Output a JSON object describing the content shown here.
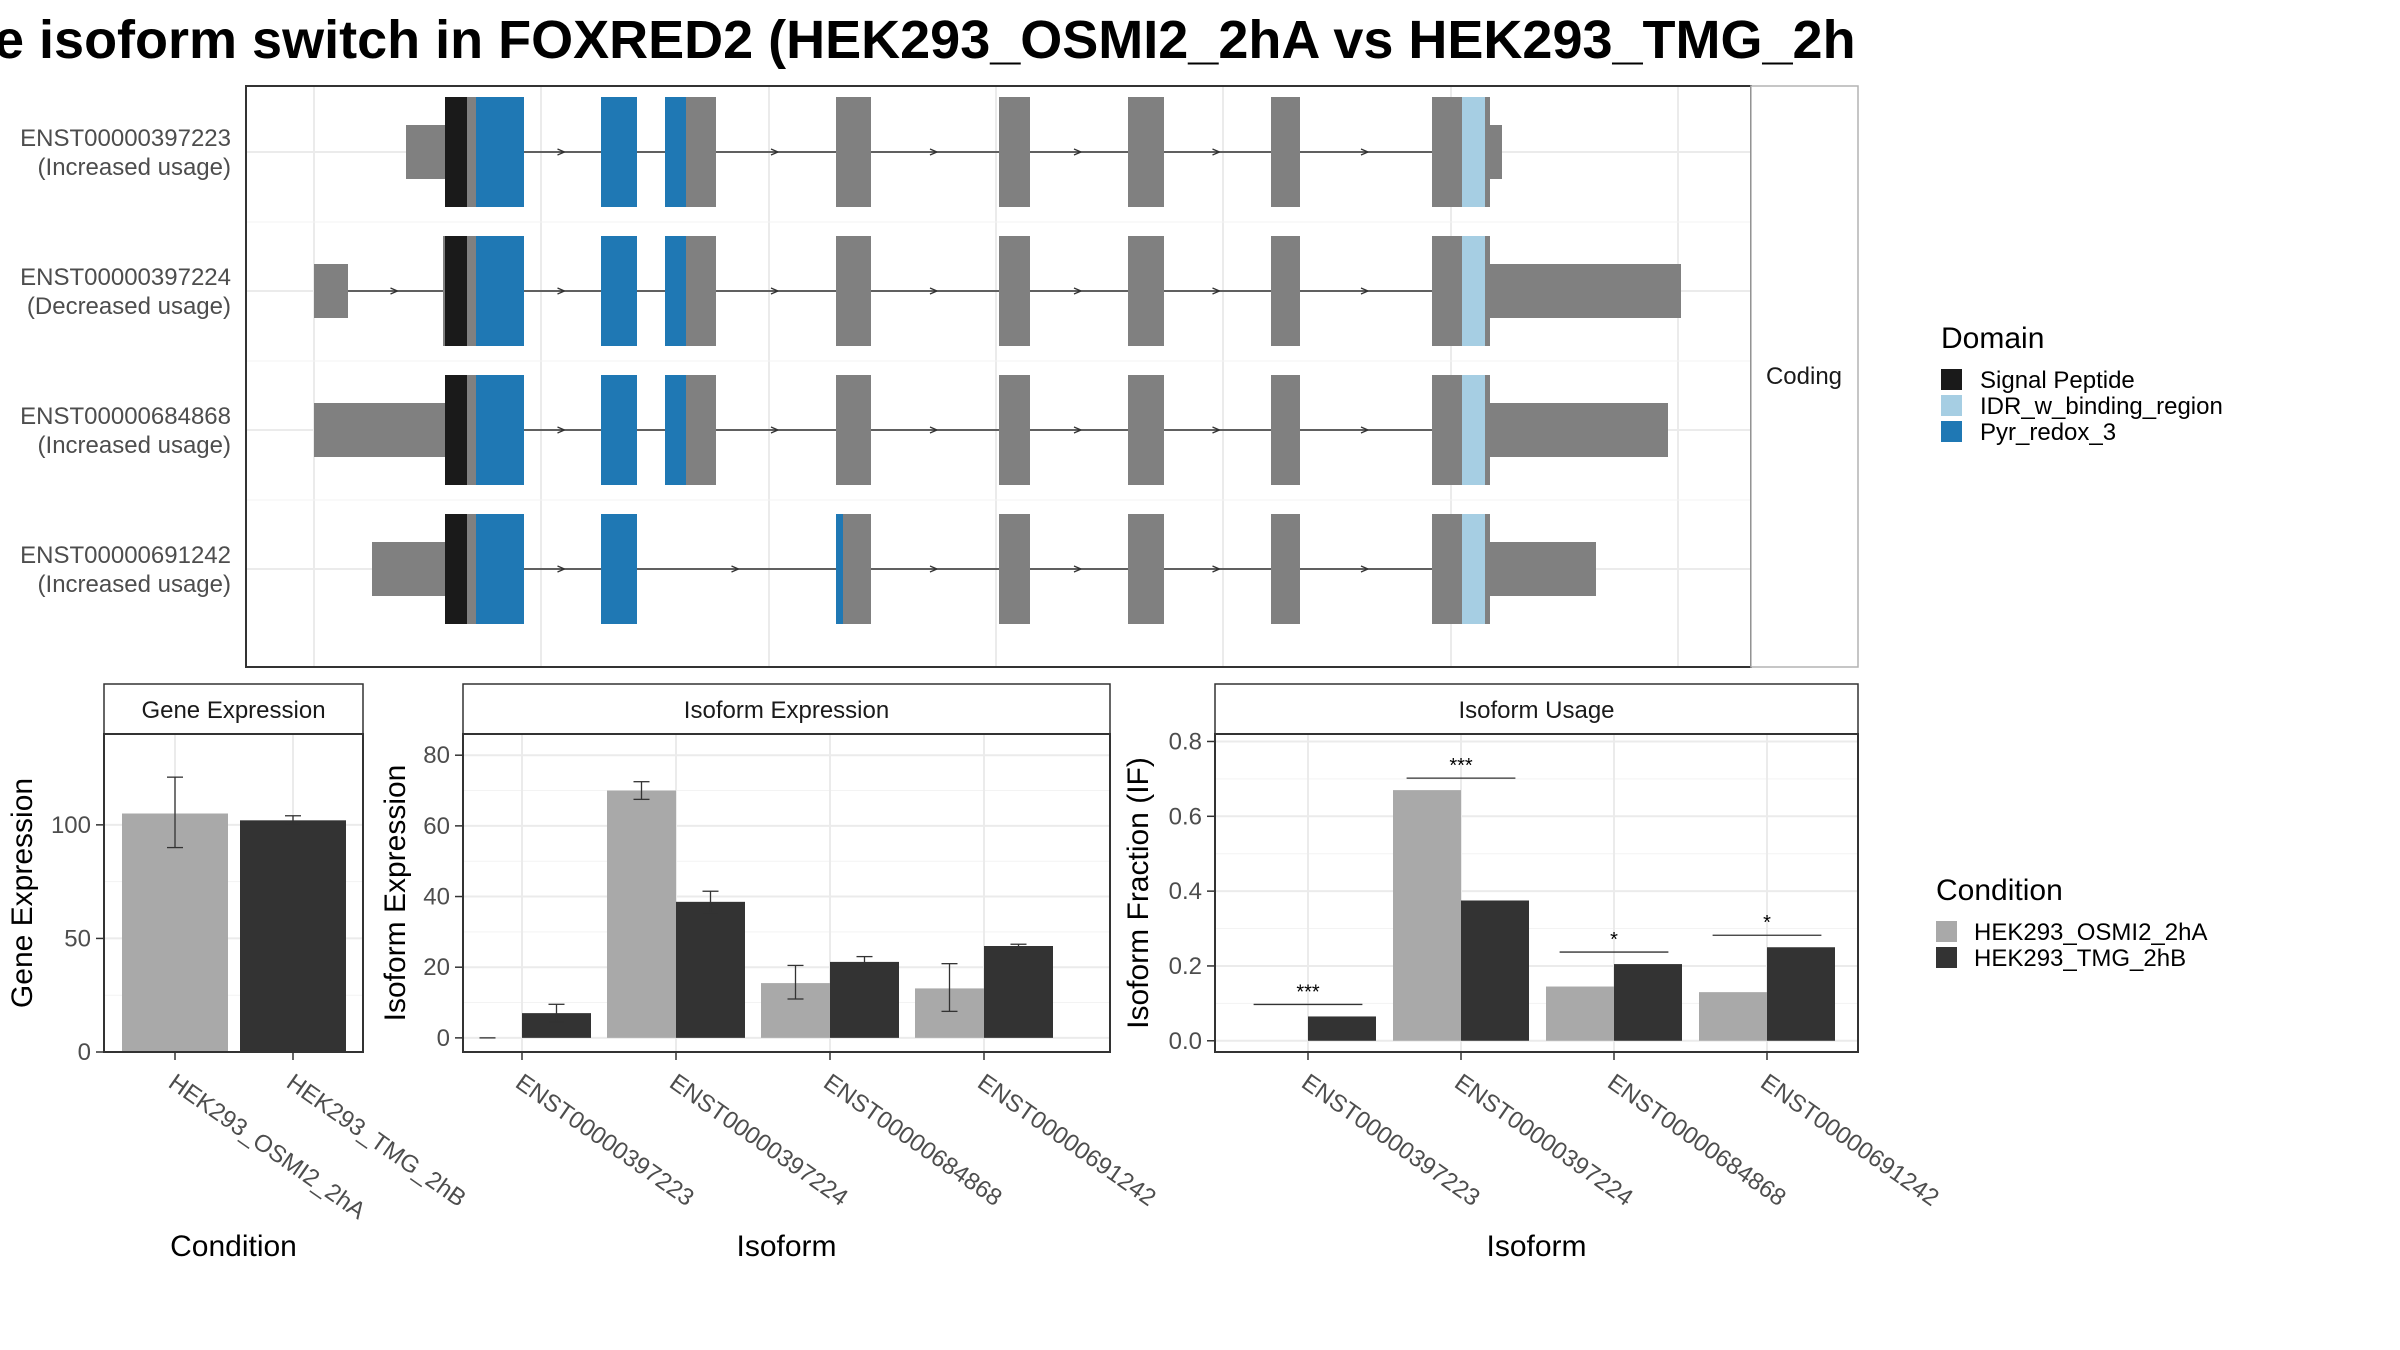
{
  "title": "e isoform switch in FOXRED2 (HEK293_OSMI2_2hA vs HEK293_TMG_2h",
  "colors": {
    "signal_peptide": "#1a1a1a",
    "idr": "#a6cee3",
    "pyr_redox": "#1f78b4",
    "exon": "#808080",
    "cond_a": "#a9a9a9",
    "cond_b": "#333333"
  },
  "structure": {
    "facet_label": "Coding",
    "rows": [
      {
        "name": "ENST00000397223",
        "usage": "(Increased usage)"
      },
      {
        "name": "ENST00000397224",
        "usage": "(Decreased usage)"
      },
      {
        "name": "ENST00000684868",
        "usage": "(Increased usage)"
      },
      {
        "name": "ENST00000691242",
        "usage": "(Increased usage)"
      }
    ]
  },
  "domain_legend": {
    "title": "Domain",
    "items": [
      {
        "label": "Signal Peptide",
        "color": "#1a1a1a"
      },
      {
        "label": "IDR_w_binding_region",
        "color": "#a6cee3"
      },
      {
        "label": "Pyr_redox_3",
        "color": "#1f78b4"
      }
    ]
  },
  "condition_legend": {
    "title": "Condition",
    "items": [
      {
        "label": "HEK293_OSMI2_2hA",
        "color": "#a9a9a9"
      },
      {
        "label": "HEK293_TMG_2hB",
        "color": "#333333"
      }
    ]
  },
  "chart_data": [
    {
      "type": "bar",
      "title": "Gene Expression",
      "xlabel": "Condition",
      "ylabel": "Gene Expression",
      "categories": [
        "HEK293_OSMI2_2hA",
        "HEK293_TMG_2hB"
      ],
      "values": [
        105,
        102
      ],
      "errors": [
        [
          90,
          121
        ],
        [
          100,
          104
        ]
      ],
      "ylim": [
        0,
        140
      ],
      "yticks": [
        0,
        50,
        100
      ]
    },
    {
      "type": "bar",
      "title": "Isoform Expression",
      "xlabel": "Isoform",
      "ylabel": "Isoform Expression",
      "categories": [
        "ENST00000397223",
        "ENST00000397224",
        "ENST00000684868",
        "ENST00000691242"
      ],
      "series": [
        {
          "name": "HEK293_OSMI2_2hA",
          "values": [
            0,
            70,
            15.5,
            14
          ],
          "errors": [
            [
              0,
              0
            ],
            [
              67.5,
              72.5
            ],
            [
              11,
              20.5
            ],
            [
              7.5,
              21
            ]
          ]
        },
        {
          "name": "HEK293_TMG_2hB",
          "values": [
            7,
            38.5,
            21.5,
            26
          ],
          "errors": [
            [
              4.5,
              9.5
            ],
            [
              35.5,
              41.5
            ],
            [
              20,
              23
            ],
            [
              25.5,
              26.5
            ]
          ]
        }
      ],
      "ylim": [
        -4,
        86
      ],
      "yticks": [
        0,
        20,
        40,
        60,
        80
      ]
    },
    {
      "type": "bar",
      "title": "Isoform Usage",
      "xlabel": "Isoform",
      "ylabel": "Isoform Fraction (IF)",
      "categories": [
        "ENST00000397223",
        "ENST00000397224",
        "ENST00000684868",
        "ENST00000691242"
      ],
      "series": [
        {
          "name": "HEK293_OSMI2_2hA",
          "values": [
            0,
            0.67,
            0.145,
            0.13
          ]
        },
        {
          "name": "HEK293_TMG_2hB",
          "values": [
            0.065,
            0.375,
            0.205,
            0.25
          ]
        }
      ],
      "significance": [
        "***",
        "***",
        "*",
        "*"
      ],
      "ylim": [
        -0.03,
        0.82
      ],
      "yticks": [
        0.0,
        0.2,
        0.4,
        0.6,
        0.8
      ],
      "ytick_labels": [
        "0.0",
        "0.2",
        "0.4",
        "0.6",
        "0.8"
      ]
    }
  ]
}
